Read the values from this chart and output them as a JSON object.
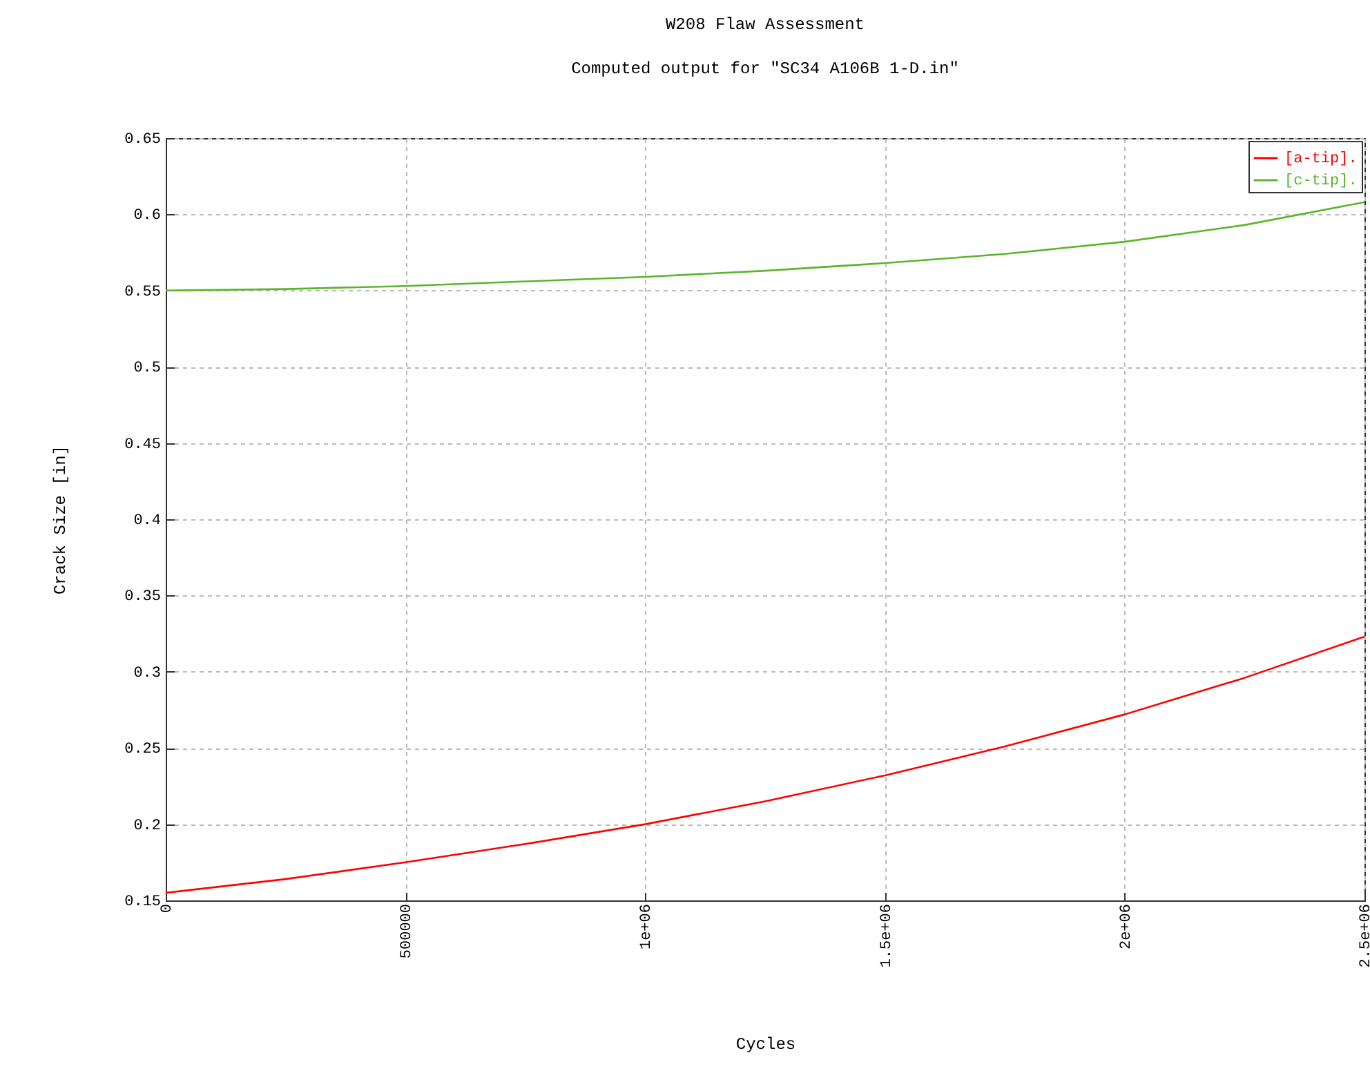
{
  "chart_data": {
    "type": "line",
    "title": "W208 Flaw Assessment",
    "subtitle": "Computed output for \"SC34 A106B 1-D.in\"",
    "xlabel": "Cycles",
    "ylabel": "Crack Size [in]",
    "x": [
      0,
      250000,
      500000,
      750000,
      1000000,
      1250000,
      1500000,
      1750000,
      2000000,
      2250000,
      2500000
    ],
    "series": [
      {
        "name": "[a-tip].",
        "color": "#ff0000",
        "values": [
          0.155,
          0.164,
          0.175,
          0.187,
          0.2,
          0.215,
          0.232,
          0.251,
          0.272,
          0.296,
          0.323
        ]
      },
      {
        "name": "[c-tip].",
        "color": "#5ab52a",
        "values": [
          0.55,
          0.551,
          0.553,
          0.556,
          0.559,
          0.563,
          0.568,
          0.574,
          0.582,
          0.593,
          0.608
        ]
      }
    ],
    "xlim": [
      0,
      2500000
    ],
    "xticks": [
      0,
      500000,
      {
        "value": 1000000,
        "label": "1e+06"
      },
      {
        "value": 1500000,
        "label": "1.5e+06"
      },
      {
        "value": 2000000,
        "label": "2e+06"
      },
      {
        "value": 2500000,
        "label": "2.5e+06"
      }
    ],
    "ylim": [
      0.15,
      0.65
    ],
    "yticks": [
      0.15,
      0.2,
      0.25,
      0.3,
      0.35,
      0.4,
      0.45,
      0.5,
      0.55,
      0.6,
      0.65
    ],
    "grid": true,
    "legend": "top right",
    "marker": "none",
    "line_style": "solid"
  }
}
